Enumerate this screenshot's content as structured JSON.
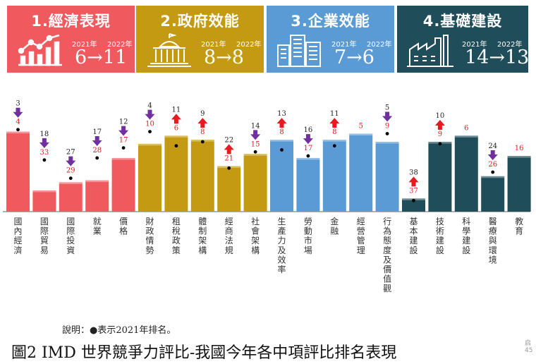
{
  "panels": [
    {
      "title": "1.經濟表現",
      "y1": "2021年",
      "y2": "2022年",
      "rank": "6→11",
      "color": "#f05a5f",
      "icon": "chart-trend-icon"
    },
    {
      "title": "2.政府效能",
      "y1": "2021年",
      "y2": "2022年",
      "rank": "8→8",
      "color": "#c49a12",
      "icon": "government-building-icon"
    },
    {
      "title": "3.企業效能",
      "y1": "2021年",
      "y2": "2022年",
      "rank": "7→6",
      "color": "#5b9bd5",
      "icon": "office-buildings-icon"
    },
    {
      "title": "4.基礎建設",
      "y1": "2021年",
      "y2": "2022年",
      "rank": "14→13",
      "color": "#1f4e5a",
      "icon": "factory-icon"
    }
  ],
  "chart_data": {
    "type": "bar",
    "categories": [
      "國內經濟",
      "國際貿易",
      "國際投資",
      "就業",
      "價格",
      "財政情勢",
      "租稅政策",
      "體制架構",
      "經商法規",
      "社會架構",
      "生產力及效率",
      "勞動市場",
      "金融",
      "經營管理",
      "行為態度及價值觀",
      "基本建設",
      "技術建設",
      "科學建設",
      "醫療與環境",
      "教育"
    ],
    "rank_2022": [
      4,
      33,
      29,
      28,
      17,
      10,
      6,
      8,
      21,
      15,
      8,
      17,
      8,
      5,
      9,
      37,
      9,
      6,
      26,
      16
    ],
    "rank_2021": [
      3,
      18,
      27,
      17,
      12,
      4,
      11,
      9,
      22,
      14,
      13,
      16,
      11,
      null,
      5,
      38,
      10,
      null,
      24,
      null
    ],
    "group": [
      0,
      0,
      0,
      0,
      0,
      1,
      1,
      1,
      1,
      1,
      2,
      2,
      2,
      2,
      2,
      3,
      3,
      3,
      3,
      3
    ],
    "change": [
      "down",
      "down",
      "down",
      "down",
      "down",
      "down",
      "up",
      "up",
      "up",
      "down",
      "up",
      "down",
      "up",
      "none",
      "down",
      "up",
      "up",
      "none",
      "down",
      "none"
    ],
    "colors": {
      "arrow_up": "#e8191f",
      "arrow_down": "#7030a0",
      "rank_2022": "#e8191f",
      "rank_2021": "#222222"
    }
  },
  "note": "說明：●表示2021年排名。",
  "caption": "圖2 IMD 世界競爭力評比-我國今年各中項評比排名表現",
  "page_label": "启 45"
}
